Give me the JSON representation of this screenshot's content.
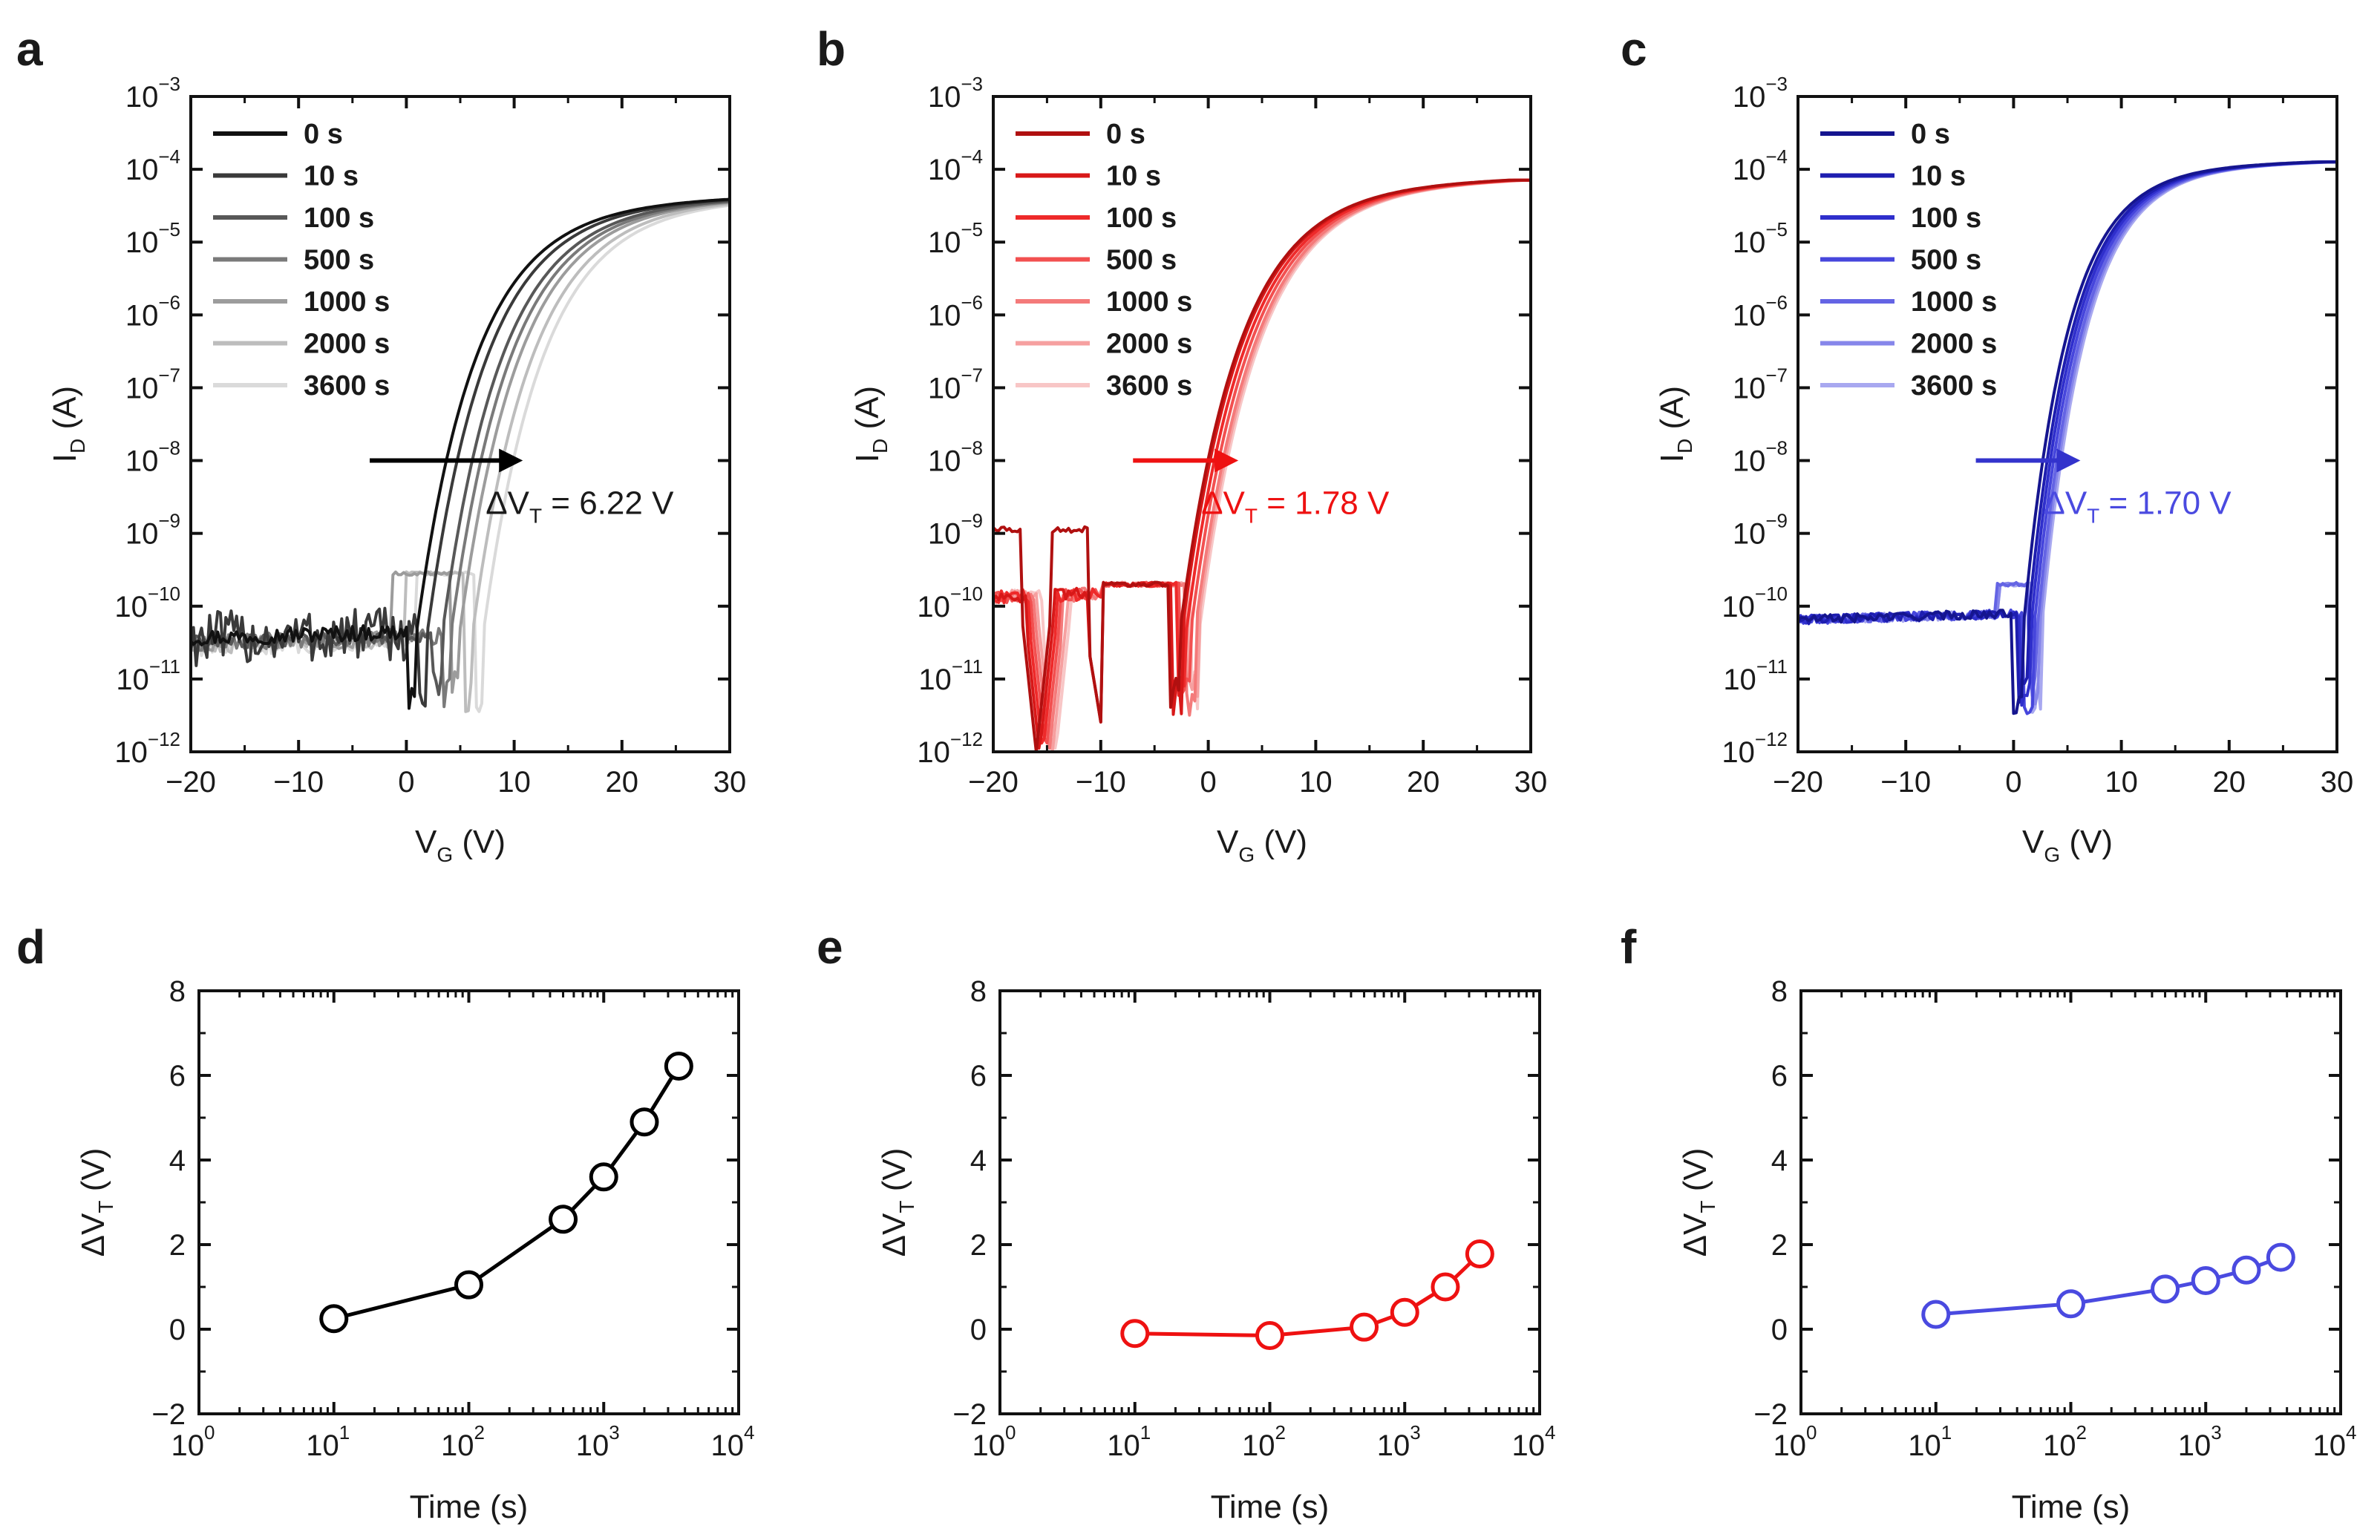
{
  "chart_data": [
    {
      "panel": "a",
      "type": "line",
      "color": "#000000",
      "xlabel": "V",
      "xlabel_sub": "G",
      "xlabel_unit": " (V)",
      "ylabel": "I",
      "ylabel_sub": "D",
      "ylabel_unit": " (A)",
      "xlim": [
        -20,
        30
      ],
      "ylim_log10": [
        -12,
        -3
      ],
      "x_ticks": [
        "−20",
        "−10",
        "0",
        "10",
        "20",
        "30"
      ],
      "y_tick_base": "10",
      "y_tick_exps": [
        "−12",
        "−11",
        "−10",
        "−9",
        "−8",
        "−7",
        "−6",
        "−5",
        "−4",
        "−3"
      ],
      "legend": [
        "0 s",
        "10 s",
        "100 s",
        "500 s",
        "1000 s",
        "2000 s",
        "3600 s"
      ],
      "series_colors": [
        "#111111",
        "#3a3a3a",
        "#585858",
        "#7a7a7a",
        "#9c9c9c",
        "#bdbdbd",
        "#dadada"
      ],
      "on_voltage": [
        0.6,
        1.6,
        3.0,
        3.8,
        4.6,
        5.8,
        6.8
      ],
      "annotation": {
        "prefix": "ΔV",
        "sub": "T",
        "suffix": " = 6.22 V"
      },
      "arrow_color": "#000000",
      "annot_color": "#1a1a1a"
    },
    {
      "panel": "b",
      "type": "line",
      "color": "#ee1111",
      "xlabel": "V",
      "xlabel_sub": "G",
      "xlabel_unit": " (V)",
      "ylabel": "I",
      "ylabel_sub": "D",
      "ylabel_unit": " (A)",
      "xlim": [
        -20,
        30
      ],
      "ylim_log10": [
        -12,
        -3
      ],
      "x_ticks": [
        "−20",
        "−10",
        "0",
        "10",
        "20",
        "30"
      ],
      "y_tick_base": "10",
      "y_tick_exps": [
        "−12",
        "−11",
        "−10",
        "−9",
        "−8",
        "−7",
        "−6",
        "−5",
        "−4",
        "−3"
      ],
      "legend": [
        "0 s",
        "10 s",
        "100 s",
        "500 s",
        "1000 s",
        "2000 s",
        "3600 s"
      ],
      "series_colors": [
        "#b01010",
        "#d81818",
        "#ee2a2a",
        "#f25050",
        "#f47a7a",
        "#f6a0a0",
        "#f8c6c6"
      ],
      "on_voltage": [
        -3.0,
        -2.8,
        -2.4,
        -2.0,
        -1.6,
        -1.4,
        -1.2
      ],
      "annotation": {
        "prefix": "ΔV",
        "sub": "T",
        "suffix": " = 1.78 V"
      },
      "arrow_color": "#ee1111",
      "annot_color": "#ee1111"
    },
    {
      "panel": "c",
      "type": "line",
      "color": "#3333cc",
      "xlabel": "V",
      "xlabel_sub": "G",
      "xlabel_unit": " (V)",
      "ylabel": "I",
      "ylabel_sub": "D",
      "ylabel_unit": " (A)",
      "xlim": [
        -20,
        30
      ],
      "ylim_log10": [
        -12,
        -3
      ],
      "x_ticks": [
        "−20",
        "−10",
        "0",
        "10",
        "20",
        "30"
      ],
      "y_tick_base": "10",
      "y_tick_exps": [
        "−12",
        "−11",
        "−10",
        "−9",
        "−8",
        "−7",
        "−6",
        "−5",
        "−4",
        "−3"
      ],
      "legend": [
        "0 s",
        "10 s",
        "100 s",
        "500 s",
        "1000 s",
        "2000 s",
        "3600 s"
      ],
      "series_colors": [
        "#15158f",
        "#1e1eb0",
        "#2f2fcc",
        "#4646dc",
        "#6464e4",
        "#8686ea",
        "#a8a8f0"
      ],
      "on_voltage": [
        0.5,
        0.9,
        1.2,
        1.5,
        1.8,
        2.0,
        2.2
      ],
      "annotation": {
        "prefix": "ΔV",
        "sub": "T",
        "suffix": " = 1.70 V"
      },
      "arrow_color": "#3333cc",
      "annot_color": "#4a4ae0"
    },
    {
      "panel": "d",
      "type": "scatter",
      "color": "#000000",
      "xlabel": "Time (s)",
      "ylabel": "ΔV",
      "ylabel_sub": "T",
      "ylabel_unit": " (V)",
      "xlim_log10": [
        0,
        4
      ],
      "ylim": [
        -2,
        8
      ],
      "x_tick_base": "10",
      "x_tick_exps": [
        "0",
        "1",
        "2",
        "3",
        "4"
      ],
      "y_ticks": [
        "−2",
        "0",
        "2",
        "4",
        "6",
        "8"
      ],
      "x": [
        10,
        100,
        500,
        1000,
        2000,
        3600
      ],
      "y": [
        0.25,
        1.05,
        2.6,
        3.6,
        4.9,
        6.22
      ]
    },
    {
      "panel": "e",
      "type": "scatter",
      "color": "#ee1111",
      "xlabel": "Time (s)",
      "ylabel": "ΔV",
      "ylabel_sub": "T",
      "ylabel_unit": " (V)",
      "xlim_log10": [
        0,
        4
      ],
      "ylim": [
        -2,
        8
      ],
      "x_tick_base": "10",
      "x_tick_exps": [
        "0",
        "1",
        "2",
        "3",
        "4"
      ],
      "y_ticks": [
        "−2",
        "0",
        "2",
        "4",
        "6",
        "8"
      ],
      "x": [
        10,
        100,
        500,
        1000,
        2000,
        3600
      ],
      "y": [
        -0.1,
        -0.15,
        0.05,
        0.4,
        1.0,
        1.78
      ]
    },
    {
      "panel": "f",
      "type": "scatter",
      "color": "#4a4ae0",
      "xlabel": "Time (s)",
      "ylabel": "ΔV",
      "ylabel_sub": "T",
      "ylabel_unit": " (V)",
      "xlim_log10": [
        0,
        4
      ],
      "ylim": [
        -2,
        8
      ],
      "x_tick_base": "10",
      "x_tick_exps": [
        "0",
        "1",
        "2",
        "3",
        "4"
      ],
      "y_ticks": [
        "−2",
        "0",
        "2",
        "4",
        "6",
        "8"
      ],
      "x": [
        10,
        100,
        500,
        1000,
        2000,
        3600
      ],
      "y": [
        0.35,
        0.6,
        0.95,
        1.15,
        1.4,
        1.7
      ]
    }
  ]
}
